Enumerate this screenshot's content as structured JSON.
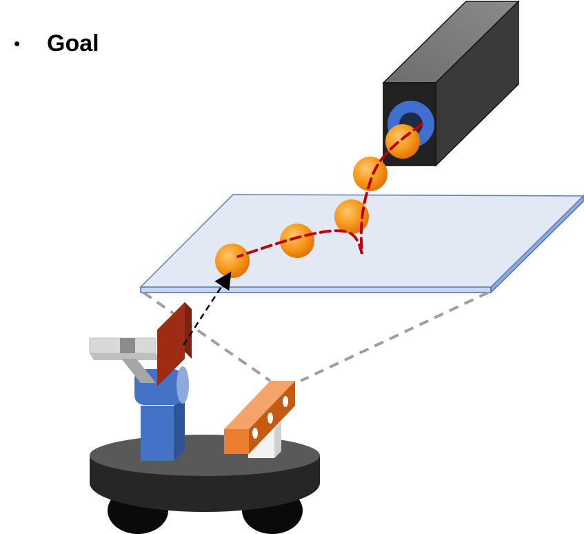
{
  "slide": {
    "bullet": "•",
    "title": "Goal"
  },
  "colors": {
    "table_top": "#e2e8f4",
    "table_edge": "#5b7fc0",
    "ball": "#f39a1c",
    "trajectory": "#c00000",
    "camera_front": "#222222",
    "camera_lens_ring": "#3f6fd1",
    "paddle": "#9c2c13",
    "arm": "#4472c4",
    "base": "#262626",
    "sensor": "#ed7d31"
  },
  "icons": [
    "camera-icon",
    "ball-icon",
    "robot-icon",
    "paddle-icon",
    "sensor-icon",
    "table-icon"
  ]
}
